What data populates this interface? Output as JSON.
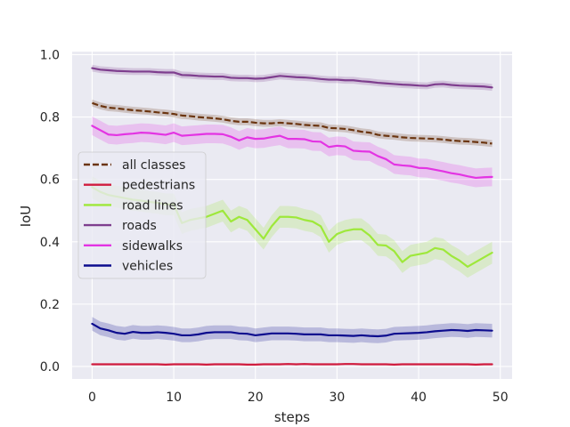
{
  "chart_data": {
    "type": "line",
    "xlabel": "steps",
    "ylabel": "IoU",
    "xlim": [
      -2.45,
      51.45
    ],
    "ylim": [
      -0.04,
      1.01
    ],
    "xticks": [
      "0",
      "10",
      "20",
      "30",
      "40",
      "50"
    ],
    "yticks": [
      "0.0",
      "0.2",
      "0.4",
      "0.6",
      "0.8",
      "1.0"
    ],
    "grid": true,
    "legend_position": "center-left",
    "x": [
      0,
      1,
      2,
      3,
      4,
      5,
      6,
      7,
      8,
      9,
      10,
      11,
      12,
      13,
      14,
      15,
      16,
      17,
      18,
      19,
      20,
      21,
      22,
      23,
      24,
      25,
      26,
      27,
      28,
      29,
      30,
      31,
      32,
      33,
      34,
      35,
      36,
      37,
      38,
      39,
      40,
      41,
      42,
      43,
      44,
      45,
      46,
      47,
      48,
      49
    ],
    "series": [
      {
        "name": "all classes",
        "color": "#6b3510",
        "dashed": true,
        "band": 0.011,
        "values": [
          0.845,
          0.836,
          0.83,
          0.828,
          0.825,
          0.822,
          0.82,
          0.818,
          0.815,
          0.813,
          0.81,
          0.805,
          0.803,
          0.8,
          0.798,
          0.796,
          0.793,
          0.788,
          0.785,
          0.785,
          0.782,
          0.78,
          0.78,
          0.782,
          0.78,
          0.778,
          0.775,
          0.773,
          0.772,
          0.765,
          0.764,
          0.762,
          0.758,
          0.753,
          0.75,
          0.743,
          0.74,
          0.738,
          0.735,
          0.733,
          0.732,
          0.731,
          0.73,
          0.728,
          0.725,
          0.723,
          0.722,
          0.72,
          0.718,
          0.715
        ]
      },
      {
        "name": "pedestrians",
        "color": "#d01c3e",
        "dashed": false,
        "band": 0.003,
        "values": [
          0.007,
          0.007,
          0.007,
          0.007,
          0.007,
          0.007,
          0.007,
          0.007,
          0.007,
          0.006,
          0.007,
          0.007,
          0.007,
          0.007,
          0.006,
          0.007,
          0.007,
          0.007,
          0.007,
          0.006,
          0.006,
          0.007,
          0.007,
          0.007,
          0.008,
          0.007,
          0.008,
          0.007,
          0.007,
          0.007,
          0.007,
          0.008,
          0.008,
          0.007,
          0.007,
          0.007,
          0.007,
          0.006,
          0.007,
          0.007,
          0.007,
          0.007,
          0.007,
          0.007,
          0.007,
          0.007,
          0.007,
          0.006,
          0.007,
          0.007
        ]
      },
      {
        "name": "road lines",
        "color": "#9ee83a",
        "dashed": false,
        "band": 0.035,
        "values": [
          0.575,
          0.56,
          0.55,
          0.545,
          0.54,
          0.535,
          0.532,
          0.528,
          0.525,
          0.52,
          0.52,
          0.46,
          0.47,
          0.475,
          0.48,
          0.49,
          0.5,
          0.465,
          0.48,
          0.47,
          0.44,
          0.41,
          0.45,
          0.48,
          0.48,
          0.478,
          0.47,
          0.465,
          0.45,
          0.4,
          0.425,
          0.435,
          0.44,
          0.44,
          0.42,
          0.39,
          0.388,
          0.37,
          0.335,
          0.355,
          0.36,
          0.365,
          0.38,
          0.375,
          0.355,
          0.34,
          0.32,
          0.335,
          0.35,
          0.365
        ]
      },
      {
        "name": "roads",
        "color": "#7e3e8e",
        "dashed": false,
        "band": 0.011,
        "values": [
          0.957,
          0.952,
          0.95,
          0.948,
          0.947,
          0.946,
          0.946,
          0.946,
          0.944,
          0.943,
          0.943,
          0.935,
          0.934,
          0.932,
          0.931,
          0.93,
          0.93,
          0.926,
          0.925,
          0.925,
          0.923,
          0.924,
          0.928,
          0.932,
          0.93,
          0.928,
          0.927,
          0.925,
          0.922,
          0.92,
          0.92,
          0.918,
          0.918,
          0.915,
          0.913,
          0.91,
          0.908,
          0.906,
          0.904,
          0.903,
          0.901,
          0.9,
          0.905,
          0.906,
          0.903,
          0.901,
          0.9,
          0.899,
          0.898,
          0.895
        ]
      },
      {
        "name": "sidewalks",
        "color": "#e334e3",
        "dashed": false,
        "band": 0.03,
        "values": [
          0.772,
          0.758,
          0.744,
          0.742,
          0.745,
          0.747,
          0.75,
          0.749,
          0.746,
          0.743,
          0.75,
          0.74,
          0.742,
          0.744,
          0.746,
          0.746,
          0.745,
          0.737,
          0.725,
          0.735,
          0.73,
          0.731,
          0.736,
          0.74,
          0.73,
          0.73,
          0.729,
          0.722,
          0.721,
          0.704,
          0.708,
          0.706,
          0.692,
          0.69,
          0.689,
          0.675,
          0.665,
          0.648,
          0.645,
          0.643,
          0.637,
          0.636,
          0.631,
          0.626,
          0.62,
          0.616,
          0.61,
          0.605,
          0.607,
          0.608
        ]
      },
      {
        "name": "vehicles",
        "color": "#0c0c8e",
        "dashed": false,
        "band": 0.022,
        "values": [
          0.137,
          0.122,
          0.116,
          0.108,
          0.105,
          0.111,
          0.108,
          0.108,
          0.11,
          0.108,
          0.105,
          0.1,
          0.1,
          0.103,
          0.108,
          0.11,
          0.11,
          0.11,
          0.106,
          0.105,
          0.1,
          0.103,
          0.106,
          0.106,
          0.106,
          0.105,
          0.103,
          0.103,
          0.103,
          0.1,
          0.1,
          0.099,
          0.098,
          0.1,
          0.098,
          0.097,
          0.099,
          0.105,
          0.106,
          0.107,
          0.108,
          0.11,
          0.113,
          0.115,
          0.117,
          0.116,
          0.114,
          0.117,
          0.116,
          0.115
        ]
      }
    ]
  }
}
